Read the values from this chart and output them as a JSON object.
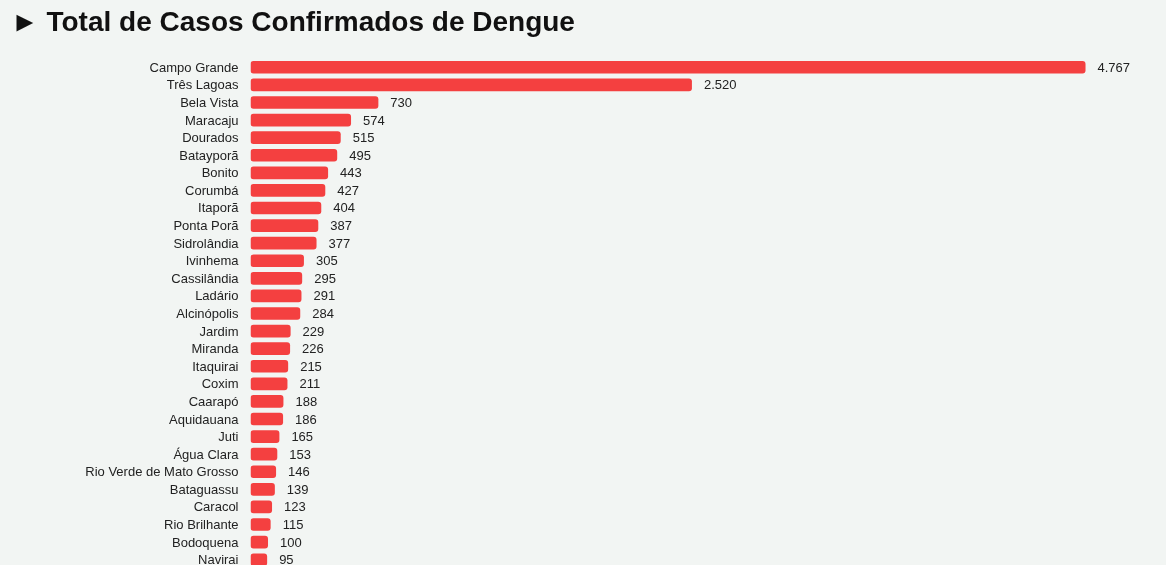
{
  "chart_data": {
    "type": "bar",
    "orientation": "horizontal",
    "title": "► Total de Casos Confirmados de Dengue",
    "color": "#f44040",
    "categories": [
      "Campo Grande",
      "Três Lagoas",
      "Bela Vista",
      "Maracaju",
      "Dourados",
      "Batayporã",
      "Bonito",
      "Corumbá",
      "Itaporã",
      "Ponta Porã",
      "Sidrolândia",
      "Ivinhema",
      "Cassilândia",
      "Ladário",
      "Alcinópolis",
      "Jardim",
      "Miranda",
      "Itaquirai",
      "Coxim",
      "Caarapó",
      "Aquidauana",
      "Juti",
      "Água Clara",
      "Rio Verde de Mato Grosso",
      "Bataguassu",
      "Caracol",
      "Rio Brilhante",
      "Bodoquena",
      "Navirai"
    ],
    "values": [
      4767,
      2520,
      730,
      574,
      515,
      495,
      443,
      427,
      404,
      387,
      377,
      305,
      295,
      291,
      284,
      229,
      226,
      215,
      211,
      188,
      186,
      165,
      153,
      146,
      139,
      123,
      115,
      100,
      95
    ],
    "value_labels": [
      "4.767",
      "2.520",
      "730",
      "574",
      "515",
      "495",
      "443",
      "427",
      "404",
      "387",
      "377",
      "305",
      "295",
      "291",
      "284",
      "229",
      "226",
      "215",
      "211",
      "188",
      "186",
      "165",
      "153",
      "146",
      "139",
      "123",
      "115",
      "100",
      "95"
    ],
    "grid": false
  }
}
